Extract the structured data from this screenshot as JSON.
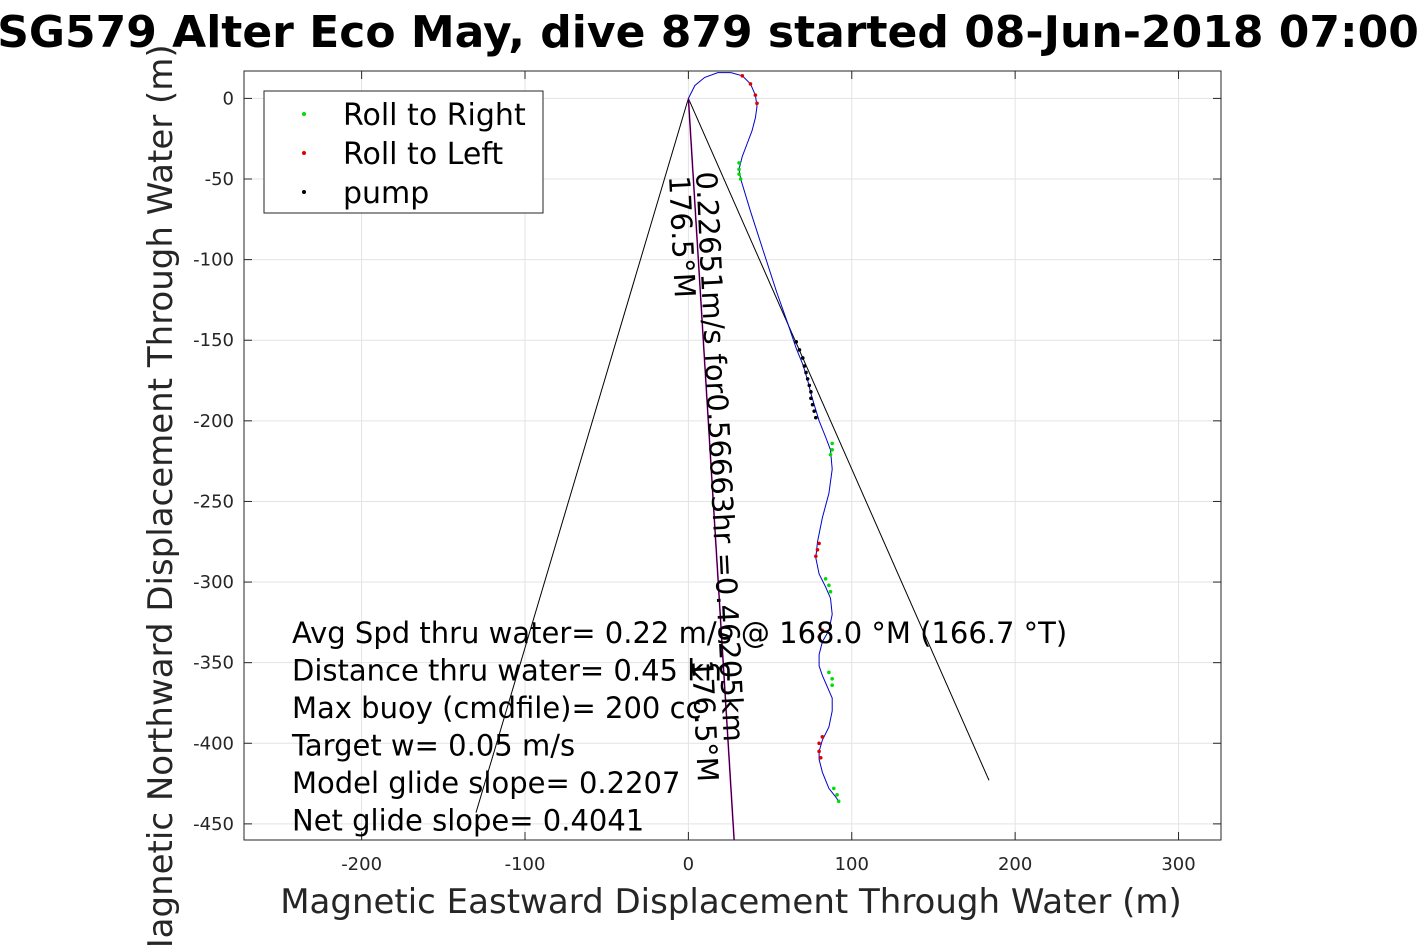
{
  "title": "SG579 Alter Eco May, dive 879 started 08-Jun-2018 07:00",
  "chart_data": {
    "type": "scatter",
    "title": "SG579 Alter Eco May, dive 879 started 08-Jun-2018 07:00",
    "xlabel": "Magnetic Eastward Displacement Through Water (m)",
    "ylabel": "Magnetic Northward Displacement Through Water (m)",
    "xlim": [
      -272,
      326
    ],
    "ylim": [
      -460,
      17
    ],
    "xticks": [
      -200,
      -100,
      0,
      100,
      200,
      300
    ],
    "xtick_labels": [
      "-200",
      "-100",
      "0",
      "100",
      "200",
      "300"
    ],
    "yticks": [
      0,
      -50,
      -100,
      -150,
      -200,
      -250,
      -300,
      -350,
      -400,
      -450
    ],
    "ytick_labels": [
      "0",
      "-50",
      "-100",
      "-150",
      "-200",
      "-250",
      "-300",
      "-350",
      "-400",
      "-450"
    ],
    "grid": true,
    "legend_position": "top-left",
    "track": {
      "color": "#0000cc",
      "x": [
        0,
        4,
        10,
        18,
        26,
        33,
        38,
        41,
        42,
        41,
        39,
        36,
        33,
        31,
        32,
        38,
        46,
        54,
        61,
        66,
        70,
        73,
        75,
        77,
        80,
        84,
        87,
        88,
        86,
        82,
        79,
        78,
        80,
        84,
        87,
        88,
        86,
        82,
        80,
        80,
        82,
        85,
        88,
        88,
        86,
        82,
        80,
        80,
        82,
        86,
        90,
        92
      ],
      "y": [
        0,
        8,
        13,
        16,
        16,
        14,
        9,
        2,
        -5,
        -12,
        -20,
        -28,
        -36,
        -44,
        -50,
        -70,
        -95,
        -120,
        -140,
        -155,
        -165,
        -175,
        -183,
        -190,
        -200,
        -210,
        -218,
        -230,
        -245,
        -260,
        -275,
        -285,
        -295,
        -303,
        -310,
        -320,
        -330,
        -337,
        -345,
        -352,
        -358,
        -365,
        -372,
        -380,
        -390,
        -398,
        -405,
        -410,
        -418,
        -428,
        -433,
        -436
      ]
    },
    "series": [
      {
        "name": "Roll to Right",
        "color": "#00dd00",
        "points": [
          [
            31,
            -40
          ],
          [
            31,
            -44
          ],
          [
            31,
            -47
          ],
          [
            32,
            -50
          ],
          [
            88,
            -214
          ],
          [
            88,
            -218
          ],
          [
            87,
            -221
          ],
          [
            84,
            -298
          ],
          [
            86,
            -302
          ],
          [
            87,
            -306
          ],
          [
            86,
            -356
          ],
          [
            88,
            -360
          ],
          [
            88,
            -364
          ],
          [
            89,
            -428
          ],
          [
            91,
            -432
          ],
          [
            92,
            -436
          ]
        ]
      },
      {
        "name": "Roll to Left",
        "color": "#e00000",
        "points": [
          [
            33,
            14
          ],
          [
            38,
            9
          ],
          [
            41,
            2
          ],
          [
            42,
            -3
          ],
          [
            80,
            -276
          ],
          [
            79,
            -280
          ],
          [
            78,
            -284
          ],
          [
            82,
            -330
          ],
          [
            80,
            -334
          ],
          [
            82,
            -396
          ],
          [
            80,
            -400
          ],
          [
            80,
            -405
          ],
          [
            81,
            -409
          ]
        ]
      },
      {
        "name": "pump",
        "color": "#000000",
        "points": [
          [
            66,
            -151
          ],
          [
            68,
            -156
          ],
          [
            70,
            -161
          ],
          [
            71,
            -166
          ],
          [
            72,
            -170
          ],
          [
            73,
            -174
          ],
          [
            74,
            -178
          ],
          [
            75,
            -182
          ],
          [
            75,
            -186
          ],
          [
            76,
            -190
          ],
          [
            77,
            -194
          ],
          [
            78,
            -198
          ]
        ]
      }
    ],
    "cone_lines": [
      {
        "x": [
          0,
          -130
        ],
        "y": [
          0,
          -443
        ]
      },
      {
        "x": [
          0,
          184
        ],
        "y": [
          0,
          -423
        ]
      },
      {
        "x": [
          0,
          28
        ],
        "y": [
          0,
          -460
        ]
      }
    ],
    "diagonal_labels": [
      {
        "text": "0.22651m/s for0.56663hr =0.46205km"
      },
      {
        "text": "176.5°M"
      },
      {
        "text": "176.5°M"
      }
    ],
    "annotations": [
      "Avg Spd thru water=  0.22 m/s @ 168.0 °M (166.7 °T)",
      "Distance thru water=  0.45 km",
      "Max buoy (cmdfile)= 200 cc",
      "Target w= 0.05 m/s",
      "Model glide slope= 0.2207",
      "Net glide slope= 0.4041"
    ]
  }
}
